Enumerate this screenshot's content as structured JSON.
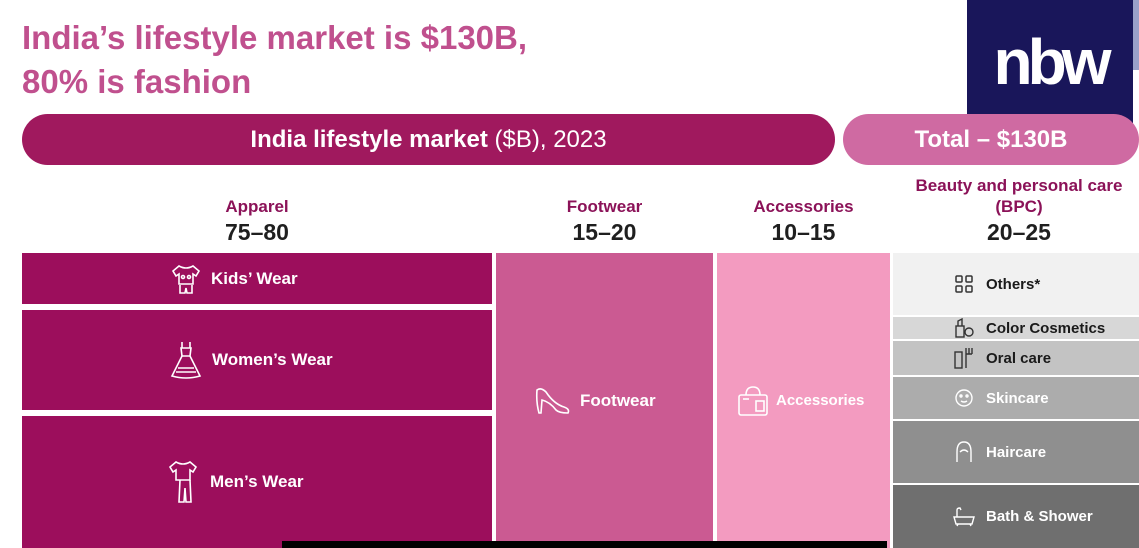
{
  "title": {
    "line1": "India’s lifestyle market is $130B,",
    "line2": "80% is fashion"
  },
  "logo": {
    "text": "nbw"
  },
  "banner": {
    "bold": "India lifestyle market",
    "rest": " ($B), 2023"
  },
  "total": "Total – $130B",
  "categories": [
    {
      "name": "Apparel",
      "value": "75–80"
    },
    {
      "name": "Footwear",
      "value": "15–20"
    },
    {
      "name": "Accessories",
      "value": "10–15"
    },
    {
      "name": "Beauty and personal care (BPC)",
      "name_line1": "Beauty and personal care",
      "name_line2": "(BPC)",
      "value": "20–25"
    }
  ],
  "apparel": [
    {
      "label": "Kids’ Wear",
      "icon": "kids-wear-icon"
    },
    {
      "label": "Women’s Wear",
      "icon": "dress-icon"
    },
    {
      "label": "Men’s Wear",
      "icon": "shirt-trousers-icon"
    }
  ],
  "footwear": {
    "label": "Footwear",
    "icon": "high-heel-icon"
  },
  "accessories": {
    "label": "Accessories",
    "icon": "handbag-icon"
  },
  "bpc": [
    {
      "label": "Others*",
      "icon": "grid-icon"
    },
    {
      "label": "Color Cosmetics",
      "icon": "cosmetics-icon"
    },
    {
      "label": "Oral care",
      "icon": "toothbrush-icon"
    },
    {
      "label": "Skincare",
      "icon": "skincare-icon"
    },
    {
      "label": "Haircare",
      "icon": "haircare-icon"
    },
    {
      "label": "Bath & Shower",
      "icon": "bathtub-icon"
    }
  ],
  "colors": {
    "title": "#c0508e",
    "apparel": "#9c0e5c",
    "footwear": "#cb5a92",
    "accessories": "#f39bc0",
    "banner": "#a0195e",
    "total": "#cf6aa2",
    "logo_bg": "#19165a"
  }
}
